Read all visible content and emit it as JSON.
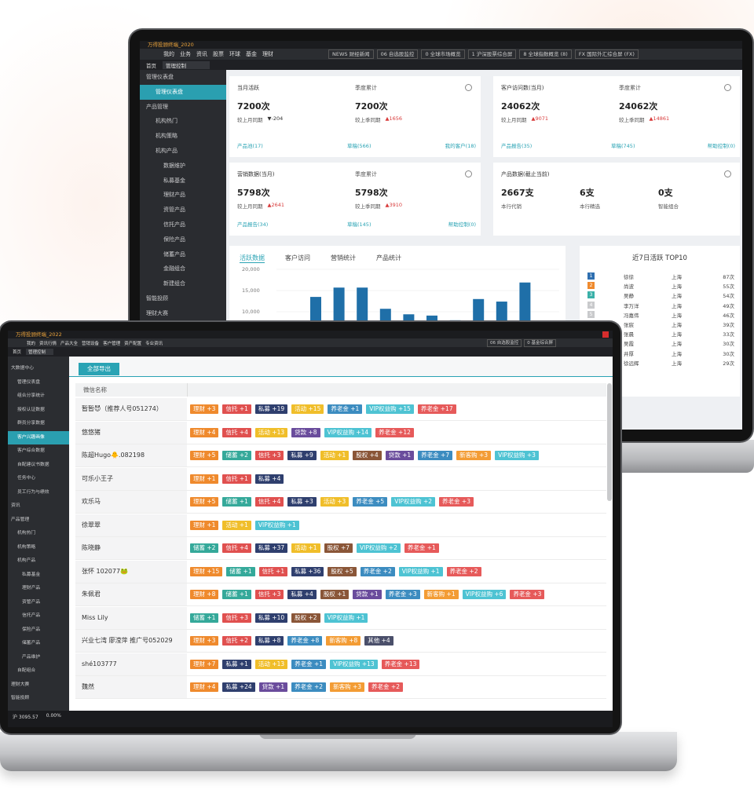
{
  "back_window": {
    "title": "万得投顾终端_2020",
    "menu": [
      "我的",
      "业务",
      "资讯",
      "股票",
      "环球",
      "基金",
      "理财"
    ],
    "toolbar_tabs": [
      "NEWS 财经新闻",
      "06 自选股监控",
      "0 全球市场概览",
      "1 沪深股票综合屏",
      "8 全球指数概览 (8)",
      "FX 国际外汇综合屏 (FX)"
    ],
    "tabs": [
      "首页",
      "管理控制"
    ],
    "sidebar": [
      "管理仪表盘",
      "管理仪表盘",
      "产品管理",
      "机构热门",
      "机构策略",
      "机构产品",
      "数据维护",
      "私募基金",
      "理财产品",
      "资管产品",
      "信托产品",
      "保险产品",
      "储蓄产品",
      "金融组合",
      "新建组合",
      "智能投顾",
      "理财大赛"
    ],
    "cards": [
      {
        "title": "当月活跃",
        "period": "季度累计",
        "value1": "7200次",
        "value2": "7200次",
        "compare1": {
          "label": "较上月同期",
          "delta": "▼-204"
        },
        "compare2": {
          "label": "较上季同期",
          "delta": "▲1656"
        },
        "links": [
          "产品池(17)",
          "草稿(566)",
          "我的客户(18)"
        ]
      },
      {
        "title": "客户访问数(当月)",
        "period": "季度累计",
        "value1": "24062次",
        "value2": "24062次",
        "compare1": {
          "label": "较上月同期",
          "delta": "▲9071"
        },
        "compare2": {
          "label": "较上季同期",
          "delta": "▲14861"
        },
        "links": [
          "产品报告(35)",
          "草稿(745)",
          "帮助控制(0)"
        ]
      },
      {
        "title": "营销数据(当月)",
        "period": "季度累计",
        "value1": "5798次",
        "value2": "5798次",
        "compare1": {
          "label": "较上月同期",
          "delta": "▲2641"
        },
        "compare2": {
          "label": "较上季同期",
          "delta": "▲3910"
        },
        "links": [
          "产品报告(34)",
          "草稿(145)",
          "帮助控制(0)"
        ]
      }
    ],
    "product_card": {
      "title": "产品数据(截止当前)",
      "items": [
        {
          "value": "2667支",
          "label": "本行代销"
        },
        {
          "value": "6支",
          "label": "本行精选"
        },
        {
          "value": "0支",
          "label": "智能组合"
        }
      ]
    },
    "chart_tabs": [
      "活跃数据",
      "客户访问",
      "营销统计",
      "产品统计"
    ],
    "top10": {
      "title": "近7日活跃 TOP10",
      "rows": [
        [
          "1",
          "徐徐",
          "上海",
          "87次"
        ],
        [
          "2",
          "尚波",
          "上海",
          "55次"
        ],
        [
          "3",
          "吴静",
          "上海",
          "54次"
        ],
        [
          "4",
          "李万洋",
          "上海",
          "49次"
        ],
        [
          "5",
          "冯嘉伟",
          "上海",
          "46次"
        ],
        [
          "6",
          "张宸",
          "上海",
          "39次"
        ],
        [
          "7",
          "张晨",
          "上海",
          "33次"
        ],
        [
          "8",
          "吴霞",
          "上海",
          "30次"
        ],
        [
          "9",
          "井厚",
          "上海",
          "30次"
        ],
        [
          "10",
          "徐远辉",
          "上海",
          "29次"
        ]
      ]
    }
  },
  "chart_data": {
    "type": "bar",
    "categories": [
      null,
      null,
      null,
      null,
      null,
      null,
      null,
      null,
      null,
      null
    ],
    "values": [
      13500,
      15700,
      15700,
      10700,
      9400,
      9100,
      8000,
      13000,
      12400,
      16900
    ],
    "color": "#1f6fa8",
    "ylim": [
      0,
      20000
    ],
    "yticks": [
      {
        "value": 10000,
        "label": "10,000"
      },
      {
        "value": 15000,
        "label": "15,000"
      },
      {
        "value": 20000,
        "label": "20,000"
      }
    ]
  },
  "front_window": {
    "title": "万得投顾终端_2022",
    "menu": [
      "我的",
      "资讯行情",
      "产品大全",
      "营销设备",
      "客户管理",
      "资产配置",
      "专业资讯"
    ],
    "toolbar_tabs": [
      "06 自选股监控",
      "0 基金综合屏"
    ],
    "tabs": [
      "首页",
      "管理控制"
    ],
    "sidebar": [
      "大数据中心",
      "管理仪表盘",
      "组合分享统计",
      "授权认证数据",
      "群员分享数据",
      "客户兴趣画像",
      "客户综合数据",
      "自配建议书数据",
      "任务中心",
      "员工行为与绩效",
      "资讯",
      "产品管理",
      "机构热门",
      "机构策略",
      "机构产品",
      "私募基金",
      "理财产品",
      "资管产品",
      "信托产品",
      "保险产品",
      "储蓄产品",
      "产品维护",
      "自配组合",
      "理财大赛",
      "智能投顾"
    ],
    "export_button": "全部导出",
    "table_header": "微信名称",
    "rows": [
      {
        "name": "暂暂😈（推荐人号051274）",
        "tags": [
          [
            "理财 +3",
            "#ef8a2d"
          ],
          [
            "信托 +1",
            "#e0504f"
          ],
          [
            "私募 +19",
            "#2f3f6e"
          ],
          [
            "活动 +15",
            "#f0be2a"
          ],
          [
            "养老金 +1",
            "#3c8cc0"
          ],
          [
            "VIP权益购 +15",
            "#4ec3d3"
          ],
          [
            "养老金 +17",
            "#e65a5a"
          ]
        ]
      },
      {
        "name": "悠悠猪",
        "tags": [
          [
            "理财 +4",
            "#ef8a2d"
          ],
          [
            "信托 +4",
            "#e0504f"
          ],
          [
            "活动 +13",
            "#f0be2a"
          ],
          [
            "贷款 +8",
            "#6a4c9c"
          ],
          [
            "VIP权益购 +14",
            "#4ec3d3"
          ],
          [
            "养老金 +12",
            "#e65a5a"
          ]
        ]
      },
      {
        "name": "陈超Hugo🐥.082198",
        "tags": [
          [
            "理财 +5",
            "#ef8a2d"
          ],
          [
            "储蓄 +2",
            "#35a99a"
          ],
          [
            "信托 +3",
            "#e0504f"
          ],
          [
            "私募 +9",
            "#2f3f6e"
          ],
          [
            "活动 +1",
            "#f0be2a"
          ],
          [
            "股权 +4",
            "#8a5638"
          ],
          [
            "贷款 +1",
            "#6a4c9c"
          ],
          [
            "养老金 +7",
            "#3c8cc0"
          ],
          [
            "新客购 +3",
            "#f39c34"
          ],
          [
            "VIP权益购 +3",
            "#4ec3d3"
          ]
        ]
      },
      {
        "name": "可乐小王子",
        "tags": [
          [
            "理财 +1",
            "#ef8a2d"
          ],
          [
            "信托 +1",
            "#e0504f"
          ],
          [
            "私募 +4",
            "#2f3f6e"
          ]
        ]
      },
      {
        "name": "欢乐马",
        "tags": [
          [
            "理财 +5",
            "#ef8a2d"
          ],
          [
            "储蓄 +1",
            "#35a99a"
          ],
          [
            "信托 +4",
            "#e0504f"
          ],
          [
            "私募 +3",
            "#2f3f6e"
          ],
          [
            "活动 +3",
            "#f0be2a"
          ],
          [
            "养老金 +5",
            "#3c8cc0"
          ],
          [
            "VIP权益购 +2",
            "#4ec3d3"
          ],
          [
            "养老金 +3",
            "#e65a5a"
          ]
        ]
      },
      {
        "name": "徐翠翠",
        "tags": [
          [
            "理财 +1",
            "#ef8a2d"
          ],
          [
            "活动 +1",
            "#f0be2a"
          ],
          [
            "VIP权益购 +1",
            "#4ec3d3"
          ]
        ]
      },
      {
        "name": "陈晓静",
        "tags": [
          [
            "储蓄 +2",
            "#35a99a"
          ],
          [
            "信托 +4",
            "#e0504f"
          ],
          [
            "私募 +37",
            "#2f3f6e"
          ],
          [
            "活动 +1",
            "#f0be2a"
          ],
          [
            "股权 +7",
            "#8a5638"
          ],
          [
            "VIP权益购 +2",
            "#4ec3d3"
          ],
          [
            "养老金 +1",
            "#e65a5a"
          ]
        ]
      },
      {
        "name": "张怀 102077🐸",
        "tags": [
          [
            "理财 +15",
            "#ef8a2d"
          ],
          [
            "储蓄 +1",
            "#35a99a"
          ],
          [
            "信托 +1",
            "#e0504f"
          ],
          [
            "私募 +36",
            "#2f3f6e"
          ],
          [
            "股权 +5",
            "#8a5638"
          ],
          [
            "养老金 +2",
            "#3c8cc0"
          ],
          [
            "VIP权益购 +1",
            "#4ec3d3"
          ],
          [
            "养老金 +2",
            "#e65a5a"
          ]
        ]
      },
      {
        "name": "朱佩君",
        "tags": [
          [
            "理财 +8",
            "#ef8a2d"
          ],
          [
            "储蓄 +1",
            "#35a99a"
          ],
          [
            "信托 +3",
            "#e0504f"
          ],
          [
            "私募 +4",
            "#2f3f6e"
          ],
          [
            "股权 +1",
            "#8a5638"
          ],
          [
            "贷款 +1",
            "#6a4c9c"
          ],
          [
            "养老金 +3",
            "#3c8cc0"
          ],
          [
            "新客购 +1",
            "#f39c34"
          ],
          [
            "VIP权益购 +6",
            "#4ec3d3"
          ],
          [
            "养老金 +3",
            "#e65a5a"
          ]
        ]
      },
      {
        "name": "Miss Lily",
        "tags": [
          [
            "储蓄 +1",
            "#35a99a"
          ],
          [
            "信托 +3",
            "#e0504f"
          ],
          [
            "私募 +10",
            "#2f3f6e"
          ],
          [
            "股权 +2",
            "#8a5638"
          ],
          [
            "VIP权益购 +1",
            "#4ec3d3"
          ]
        ]
      },
      {
        "name": "兴业七湾 廖滢萍 推广号052029",
        "tags": [
          [
            "理财 +3",
            "#ef8a2d"
          ],
          [
            "信托 +2",
            "#e0504f"
          ],
          [
            "私募 +8",
            "#2f3f6e"
          ],
          [
            "养老金 +8",
            "#3c8cc0"
          ],
          [
            "新客购 +8",
            "#f39c34"
          ],
          [
            "其他 +4",
            "#4a4f6a"
          ]
        ]
      },
      {
        "name": "shé103777",
        "tags": [
          [
            "理财 +7",
            "#ef8a2d"
          ],
          [
            "私募 +1",
            "#2f3f6e"
          ],
          [
            "活动 +13",
            "#f0be2a"
          ],
          [
            "养老金 +1",
            "#3c8cc0"
          ],
          [
            "VIP权益购 +13",
            "#4ec3d3"
          ],
          [
            "养老金 +13",
            "#e65a5a"
          ]
        ]
      },
      {
        "name": "魏然",
        "tags": [
          [
            "理财 +4",
            "#ef8a2d"
          ],
          [
            "私募 +24",
            "#2f3f6e"
          ],
          [
            "贷款 +1",
            "#6a4c9c"
          ],
          [
            "养老金 +2",
            "#3c8cc0"
          ],
          [
            "新客购 +3",
            "#f39c34"
          ],
          [
            "养老金 +2",
            "#e65a5a"
          ]
        ]
      }
    ],
    "status": [
      "沪 3095.57",
      "0.00%"
    ]
  }
}
